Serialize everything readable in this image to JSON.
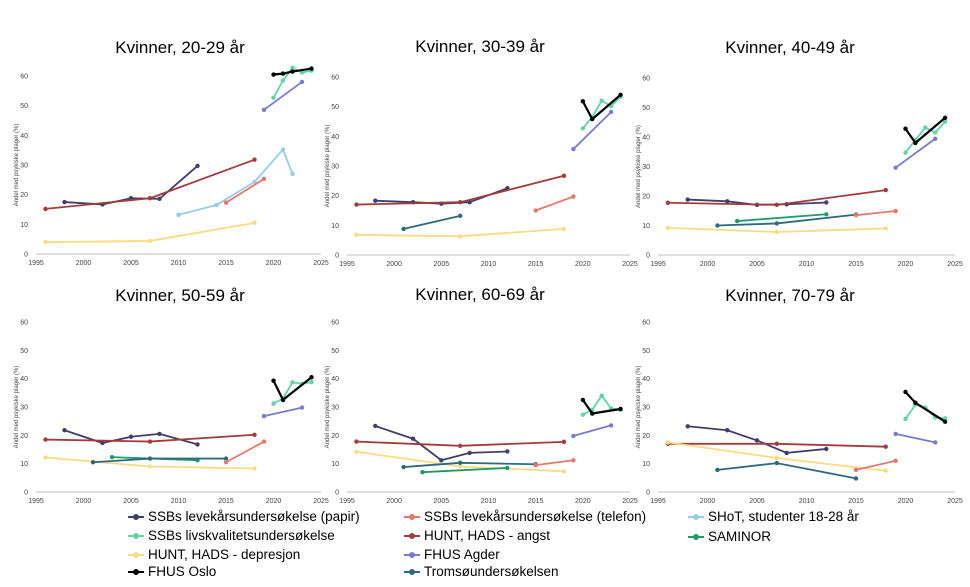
{
  "chart_data": [
    {
      "type": "line",
      "title": "Kvinner, 20-29 år",
      "ylabel": "Andel med psykiske plager (%)",
      "xlim": [
        1995,
        2025
      ],
      "ylim": [
        0,
        60
      ],
      "xticks": [
        1995,
        2000,
        2005,
        2010,
        2015,
        2020,
        2025
      ],
      "yticks": [
        0,
        10,
        20,
        30,
        40,
        50,
        60
      ],
      "series": [
        {
          "name": "SSBs levekårsundersøkelse (papir)",
          "x": [
            1998,
            2002,
            2005,
            2008,
            2012
          ],
          "y": [
            17.5,
            16.7,
            18.8,
            18.6,
            29.7
          ]
        },
        {
          "name": "HUNT, HADS - angst",
          "x": [
            1996,
            2007,
            2018
          ],
          "y": [
            15.2,
            18.8,
            31.8
          ]
        },
        {
          "name": "HUNT, HADS - depresjon",
          "x": [
            1996,
            2007,
            2018
          ],
          "y": [
            4.0,
            4.4,
            10.5
          ]
        },
        {
          "name": "SHoT, studenter 18-28 år",
          "x": [
            2010,
            2014,
            2018,
            2021,
            2022
          ],
          "y": [
            13.2,
            16.5,
            24.3,
            35.2,
            27.0
          ]
        },
        {
          "name": "SSBs levekårsundersøkelse (telefon)",
          "x": [
            2015,
            2019
          ],
          "y": [
            17.3,
            25.3
          ]
        },
        {
          "name": "FHUS Agder",
          "x": [
            2019,
            2023
          ],
          "y": [
            48.6,
            58.0
          ]
        },
        {
          "name": "SSBs livskvalitetsundersøkelse",
          "x": [
            2020,
            2021,
            2022,
            2023,
            2024
          ],
          "y": [
            52.7,
            58.5,
            62.8,
            61.2,
            61.8
          ]
        },
        {
          "name": "FHUS Oslo",
          "x": [
            2020,
            2021,
            2022,
            2024
          ],
          "y": [
            60.5,
            60.8,
            61.5,
            62.5
          ]
        }
      ]
    },
    {
      "type": "line",
      "title": "Kvinner, 30-39 år",
      "ylabel": "Andel med psykiske plager (%)",
      "xlim": [
        1995,
        2025
      ],
      "ylim": [
        0,
        60
      ],
      "xticks": [
        1995,
        2000,
        2005,
        2010,
        2015,
        2020,
        2025
      ],
      "yticks": [
        0,
        10,
        20,
        30,
        40,
        50,
        60
      ],
      "series": [
        {
          "name": "SSBs levekårsundersøkelse (papir)",
          "x": [
            1998,
            2002,
            2005,
            2008,
            2012
          ],
          "y": [
            18.3,
            17.8,
            17.3,
            17.8,
            22.5
          ]
        },
        {
          "name": "HUNT, HADS - angst",
          "x": [
            1996,
            2007,
            2018
          ],
          "y": [
            17.0,
            17.8,
            26.7
          ]
        },
        {
          "name": "HUNT, HADS - depresjon",
          "x": [
            1996,
            2007,
            2018
          ],
          "y": [
            6.8,
            6.3,
            8.8
          ]
        },
        {
          "name": "Tromsøundersøkelsen",
          "x": [
            2001,
            2007
          ],
          "y": [
            8.8,
            13.2
          ]
        },
        {
          "name": "SSBs levekårsundersøkelse (telefon)",
          "x": [
            2015,
            2019
          ],
          "y": [
            15.0,
            19.7
          ]
        },
        {
          "name": "FHUS Agder",
          "x": [
            2019,
            2023
          ],
          "y": [
            35.7,
            48.2
          ]
        },
        {
          "name": "SSBs livskvalitetsundersøkelse",
          "x": [
            2020,
            2021,
            2022,
            2023,
            2024
          ],
          "y": [
            42.7,
            46.5,
            52.0,
            50.2,
            53.3
          ]
        },
        {
          "name": "FHUS Oslo",
          "x": [
            2020,
            2021,
            2024
          ],
          "y": [
            51.8,
            45.8,
            54.0
          ]
        }
      ]
    },
    {
      "type": "line",
      "title": "Kvinner, 40-49 år",
      "ylabel": "Andel med psykiske plager (%)",
      "xlim": [
        1995,
        2025
      ],
      "ylim": [
        0,
        60
      ],
      "xticks": [
        1995,
        2000,
        2005,
        2010,
        2015,
        2020,
        2025
      ],
      "yticks": [
        0,
        10,
        20,
        30,
        40,
        50,
        60
      ],
      "series": [
        {
          "name": "SSBs levekårsundersøkelse (papir)",
          "x": [
            1998,
            2002,
            2005,
            2008,
            2012
          ],
          "y": [
            18.8,
            18.2,
            17.0,
            17.2,
            17.8
          ]
        },
        {
          "name": "HUNT, HADS - angst",
          "x": [
            1996,
            2007,
            2018
          ],
          "y": [
            17.7,
            17.0,
            22.0
          ]
        },
        {
          "name": "HUNT, HADS - depresjon",
          "x": [
            1996,
            2007,
            2018
          ],
          "y": [
            9.2,
            7.8,
            9.0
          ]
        },
        {
          "name": "SAMINOR",
          "x": [
            2003,
            2012
          ],
          "y": [
            11.5,
            13.8
          ]
        },
        {
          "name": "Tromsøundersøkelsen",
          "x": [
            2001,
            2007,
            2015
          ],
          "y": [
            10.0,
            10.7,
            13.7
          ]
        },
        {
          "name": "SSBs levekårsundersøkelse (telefon)",
          "x": [
            2015,
            2019
          ],
          "y": [
            13.5,
            14.9
          ]
        },
        {
          "name": "FHUS Agder",
          "x": [
            2019,
            2023
          ],
          "y": [
            29.6,
            39.4
          ]
        },
        {
          "name": "SSBs livskvalitetsundersøkelse",
          "x": [
            2020,
            2021,
            2022,
            2023,
            2024
          ],
          "y": [
            34.7,
            39.0,
            43.2,
            41.5,
            45.2
          ]
        },
        {
          "name": "FHUS Oslo",
          "x": [
            2020,
            2021,
            2024
          ],
          "y": [
            42.8,
            38.0,
            46.5
          ]
        }
      ]
    },
    {
      "type": "line",
      "title": "Kvinner, 50-59 år",
      "ylabel": "Andel med psykiske plager (%)",
      "xlim": [
        1995,
        2025
      ],
      "ylim": [
        0,
        60
      ],
      "xticks": [
        1995,
        2000,
        2005,
        2010,
        2015,
        2020,
        2025
      ],
      "yticks": [
        0,
        10,
        20,
        30,
        40,
        50,
        60
      ],
      "series": [
        {
          "name": "SSBs levekårsundersøkelse (papir)",
          "x": [
            1998,
            2002,
            2005,
            2008,
            2012
          ],
          "y": [
            21.8,
            17.3,
            19.5,
            20.5,
            16.8
          ]
        },
        {
          "name": "HUNT, HADS - angst",
          "x": [
            1996,
            2007,
            2018
          ],
          "y": [
            18.5,
            17.8,
            20.2
          ]
        },
        {
          "name": "HUNT, HADS - depresjon",
          "x": [
            1996,
            2007,
            2018
          ],
          "y": [
            12.2,
            9.0,
            8.3
          ]
        },
        {
          "name": "SAMINOR",
          "x": [
            2003,
            2012
          ],
          "y": [
            12.3,
            11.2
          ]
        },
        {
          "name": "Tromsøundersøkelsen",
          "x": [
            2001,
            2007,
            2015
          ],
          "y": [
            10.5,
            11.8,
            11.8
          ]
        },
        {
          "name": "SSBs levekårsundersøkelse (telefon)",
          "x": [
            2015,
            2019
          ],
          "y": [
            10.5,
            17.8
          ]
        },
        {
          "name": "FHUS Agder",
          "x": [
            2019,
            2023
          ],
          "y": [
            26.8,
            29.8
          ]
        },
        {
          "name": "SSBs livskvalitetsundersøkelse",
          "x": [
            2020,
            2021,
            2022,
            2023,
            2024
          ],
          "y": [
            31.2,
            33.0,
            38.7,
            38.2,
            38.8
          ]
        },
        {
          "name": "FHUS Oslo",
          "x": [
            2020,
            2021,
            2024
          ],
          "y": [
            39.3,
            32.5,
            40.5
          ]
        }
      ]
    },
    {
      "type": "line",
      "title": "Kvinner, 60-69 år",
      "ylabel": "Andel med psykiske plager (%)",
      "xlim": [
        1995,
        2025
      ],
      "ylim": [
        0,
        60
      ],
      "xticks": [
        1995,
        2000,
        2005,
        2010,
        2015,
        2020,
        2025
      ],
      "yticks": [
        0,
        10,
        20,
        30,
        40,
        50,
        60
      ],
      "series": [
        {
          "name": "SSBs levekårsundersøkelse (papir)",
          "x": [
            1998,
            2002,
            2005,
            2008,
            2012
          ],
          "y": [
            23.3,
            18.8,
            11.2,
            13.8,
            14.3
          ]
        },
        {
          "name": "HUNT, HADS - angst",
          "x": [
            1996,
            2007,
            2018
          ],
          "y": [
            17.8,
            16.3,
            17.7
          ]
        },
        {
          "name": "HUNT, HADS - depresjon",
          "x": [
            1996,
            2007,
            2018
          ],
          "y": [
            14.2,
            9.0,
            7.3
          ]
        },
        {
          "name": "SAMINOR",
          "x": [
            2003,
            2012
          ],
          "y": [
            7.0,
            8.5
          ]
        },
        {
          "name": "Tromsøundersøkelsen",
          "x": [
            2001,
            2007,
            2015
          ],
          "y": [
            8.8,
            10.3,
            9.8
          ]
        },
        {
          "name": "SSBs levekårsundersøkelse (telefon)",
          "x": [
            2015,
            2019
          ],
          "y": [
            9.5,
            11.2
          ]
        },
        {
          "name": "FHUS Agder",
          "x": [
            2019,
            2023
          ],
          "y": [
            19.8,
            23.5
          ]
        },
        {
          "name": "SSBs livskvalitetsundersøkelse",
          "x": [
            2020,
            2021,
            2022,
            2023,
            2024
          ],
          "y": [
            27.3,
            29.0,
            34.0,
            29.5,
            29.0
          ]
        },
        {
          "name": "FHUS Oslo",
          "x": [
            2020,
            2021,
            2024
          ],
          "y": [
            32.5,
            27.7,
            29.3
          ]
        }
      ]
    },
    {
      "type": "line",
      "title": "Kvinner, 70-79 år",
      "ylabel": "Andel med psykiske plager (%)",
      "xlim": [
        1995,
        2025
      ],
      "ylim": [
        0,
        60
      ],
      "xticks": [
        1995,
        2000,
        2005,
        2010,
        2015,
        2020,
        2025
      ],
      "yticks": [
        0,
        10,
        20,
        30,
        40,
        50,
        60
      ],
      "series": [
        {
          "name": "SSBs levekårsundersøkelse (papir)",
          "x": [
            1998,
            2002,
            2005,
            2008,
            2012
          ],
          "y": [
            23.2,
            21.8,
            18.2,
            13.8,
            15.2
          ]
        },
        {
          "name": "HUNT, HADS - angst",
          "x": [
            1996,
            2007,
            2018
          ],
          "y": [
            17.0,
            17.0,
            16.0
          ]
        },
        {
          "name": "HUNT, HADS - depresjon",
          "x": [
            1996,
            2007,
            2018
          ],
          "y": [
            17.5,
            12.0,
            7.5
          ]
        },
        {
          "name": "Tromsøundersøkelsen",
          "x": [
            2001,
            2007,
            2015
          ],
          "y": [
            7.8,
            10.2,
            4.8
          ]
        },
        {
          "name": "SSBs levekårsundersøkelse (telefon)",
          "x": [
            2015,
            2019
          ],
          "y": [
            7.8,
            11.0
          ]
        },
        {
          "name": "FHUS Agder",
          "x": [
            2019,
            2023
          ],
          "y": [
            20.5,
            17.5
          ]
        },
        {
          "name": "SSBs livskvalitetsundersøkelse",
          "x": [
            2020,
            2021,
            2022,
            2023,
            2024
          ],
          "y": [
            25.8,
            30.8,
            29.8,
            26.3,
            26.0
          ]
        },
        {
          "name": "FHUS Oslo",
          "x": [
            2020,
            2021,
            2024
          ],
          "y": [
            35.3,
            31.5,
            24.8
          ]
        }
      ]
    }
  ],
  "series_colors": {
    "SSBs levekårsundersøkelse (papir)": "#3f3f6a",
    "SSBs levekårsundersøkelse (telefon)": "#e8786e",
    "SHoT, studenter 18-28 år": "#96cde8",
    "SSBs livskvalitetsundersøkelse": "#62d4a6",
    "HUNT, HADS - angst": "#a33c3c",
    "SAMINOR": "#1e9e66",
    "HUNT, HADS - depresjon": "#f9dc82",
    "FHUS Agder": "#7a7ad0",
    "FHUS Oslo": "#000000",
    "Tromsøundersøkelsen": "#2d6a7e"
  },
  "legend": {
    "placement": "bottom",
    "items": [
      {
        "label": "SSBs levekårsundersøkelse (papir)",
        "color": "#3f3f6a"
      },
      {
        "label": "SSBs levekårsundersøkelse (telefon)",
        "color": "#e8786e"
      },
      {
        "label": "SHoT, studenter 18-28 år",
        "color": "#96cde8"
      },
      {
        "label": "SSBs livskvalitetsundersøkelse",
        "color": "#62d4a6"
      },
      {
        "label": "HUNT, HADS - angst",
        "color": "#a33c3c"
      },
      {
        "label": "SAMINOR",
        "color": "#1e9e66"
      },
      {
        "label": "HUNT, HADS - depresjon",
        "color": "#f9dc82"
      },
      {
        "label": "FHUS Agder",
        "color": "#7a7ad0"
      },
      {
        "label": "FHUS Oslo",
        "color": "#000000"
      },
      {
        "label": "Tromsøundersøkelsen",
        "color": "#2d6a7e"
      }
    ]
  }
}
